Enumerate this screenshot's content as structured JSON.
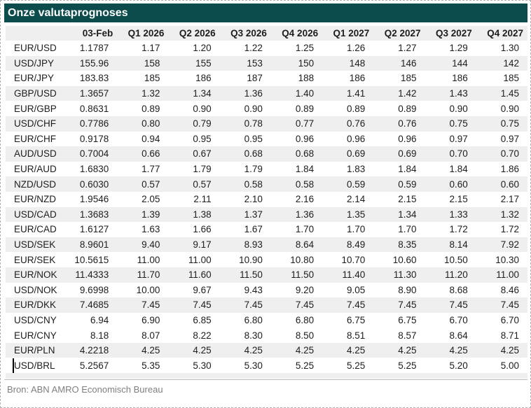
{
  "title": "Onze valutaprognoses",
  "source": "Bron: ABN AMRO Economisch Bureau",
  "colors": {
    "title_bar_bg": "#0d4c4c",
    "title_bar_text": "#ffffff",
    "row_stripe_bg": "#efefef",
    "body_text": "#1d1d1b",
    "source_text": "#7f7f7f"
  },
  "table": {
    "columns": [
      "",
      "03-Feb",
      "Q1 2026",
      "Q2 2026",
      "Q3 2026",
      "Q4 2026",
      "Q1 2027",
      "Q2 2027",
      "Q3 2027",
      "Q4 2027"
    ],
    "rows": [
      {
        "pair": "EUR/USD",
        "values": [
          "1.1787",
          "1.17",
          "1.20",
          "1.22",
          "1.25",
          "1.26",
          "1.27",
          "1.29",
          "1.30"
        ],
        "shaded": false
      },
      {
        "pair": "USD/JPY",
        "values": [
          "155.96",
          "158",
          "155",
          "153",
          "150",
          "148",
          "146",
          "144",
          "142"
        ],
        "shaded": true
      },
      {
        "pair": "EUR/JPY",
        "values": [
          "183.83",
          "185",
          "186",
          "187",
          "188",
          "186",
          "185",
          "186",
          "185"
        ],
        "shaded": false
      },
      {
        "pair": "GBP/USD",
        "values": [
          "1.3657",
          "1.32",
          "1.34",
          "1.36",
          "1.40",
          "1.41",
          "1.42",
          "1.43",
          "1.45"
        ],
        "shaded": true
      },
      {
        "pair": "EUR/GBP",
        "values": [
          "0.8631",
          "0.89",
          "0.90",
          "0.90",
          "0.89",
          "0.89",
          "0.89",
          "0.90",
          "0.90"
        ],
        "shaded": false
      },
      {
        "pair": "USD/CHF",
        "values": [
          "0.7786",
          "0.80",
          "0.79",
          "0.78",
          "0.77",
          "0.76",
          "0.76",
          "0.75",
          "0.75"
        ],
        "shaded": true
      },
      {
        "pair": "EUR/CHF",
        "values": [
          "0.9178",
          "0.94",
          "0.95",
          "0.95",
          "0.96",
          "0.96",
          "0.96",
          "0.97",
          "0.97"
        ],
        "shaded": false
      },
      {
        "pair": "AUD/USD",
        "values": [
          "0.7004",
          "0.66",
          "0.67",
          "0.68",
          "0.68",
          "0.69",
          "0.69",
          "0.70",
          "0.70"
        ],
        "shaded": true
      },
      {
        "pair": "EUR/AUD",
        "values": [
          "1.6830",
          "1.77",
          "1.79",
          "1.79",
          "1.84",
          "1.83",
          "1.84",
          "1.84",
          "1.86"
        ],
        "shaded": false
      },
      {
        "pair": "NZD/USD",
        "values": [
          "0.6030",
          "0.57",
          "0.57",
          "0.58",
          "0.58",
          "0.59",
          "0.59",
          "0.60",
          "0.60"
        ],
        "shaded": true
      },
      {
        "pair": "EUR/NZD",
        "values": [
          "1.9546",
          "2.05",
          "2.11",
          "2.10",
          "2.16",
          "2.14",
          "2.15",
          "2.15",
          "2.17"
        ],
        "shaded": false
      },
      {
        "pair": "USD/CAD",
        "values": [
          "1.3683",
          "1.39",
          "1.38",
          "1.37",
          "1.36",
          "1.35",
          "1.34",
          "1.33",
          "1.32"
        ],
        "shaded": true
      },
      {
        "pair": "EUR/CAD",
        "values": [
          "1.6127",
          "1.63",
          "1.66",
          "1.67",
          "1.70",
          "1.70",
          "1.70",
          "1.72",
          "1.72"
        ],
        "shaded": false
      },
      {
        "pair": "USD/SEK",
        "values": [
          "8.9601",
          "9.40",
          "9.17",
          "8.93",
          "8.64",
          "8.49",
          "8.35",
          "8.14",
          "7.92"
        ],
        "shaded": true
      },
      {
        "pair": "EUR/SEK",
        "values": [
          "10.5615",
          "11.00",
          "11.00",
          "10.90",
          "10.80",
          "10.70",
          "10.60",
          "10.50",
          "10.30"
        ],
        "shaded": false
      },
      {
        "pair": "EUR/NOK",
        "values": [
          "11.4333",
          "11.70",
          "11.60",
          "11.50",
          "11.50",
          "11.40",
          "11.30",
          "11.20",
          "11.00"
        ],
        "shaded": true
      },
      {
        "pair": "USD/NOK",
        "values": [
          "9.6998",
          "10.00",
          "9.67",
          "9.43",
          "9.20",
          "9.05",
          "8.90",
          "8.68",
          "8.46"
        ],
        "shaded": false
      },
      {
        "pair": "EUR/DKK",
        "values": [
          "7.4685",
          "7.45",
          "7.45",
          "7.45",
          "7.45",
          "7.45",
          "7.45",
          "7.45",
          "7.45"
        ],
        "shaded": true
      },
      {
        "pair": "USD/CNY",
        "values": [
          "6.94",
          "6.90",
          "6.85",
          "6.80",
          "6.80",
          "6.75",
          "6.75",
          "6.70",
          "6.70"
        ],
        "shaded": false
      },
      {
        "pair": "EUR/CNY",
        "values": [
          "8.18",
          "8.07",
          "8.22",
          "8.30",
          "8.50",
          "8.51",
          "8.57",
          "8.64",
          "8.71"
        ],
        "shaded": false
      },
      {
        "pair": "EUR/PLN",
        "values": [
          "4.2218",
          "4.25",
          "4.25",
          "4.25",
          "4.25",
          "4.25",
          "4.25",
          "4.25",
          "4.25"
        ],
        "shaded": true
      },
      {
        "pair": "USD/BRL",
        "values": [
          "5.2567",
          "5.35",
          "5.30",
          "5.30",
          "5.25",
          "5.25",
          "5.25",
          "5.20",
          "5.00"
        ],
        "shaded": false
      }
    ]
  }
}
